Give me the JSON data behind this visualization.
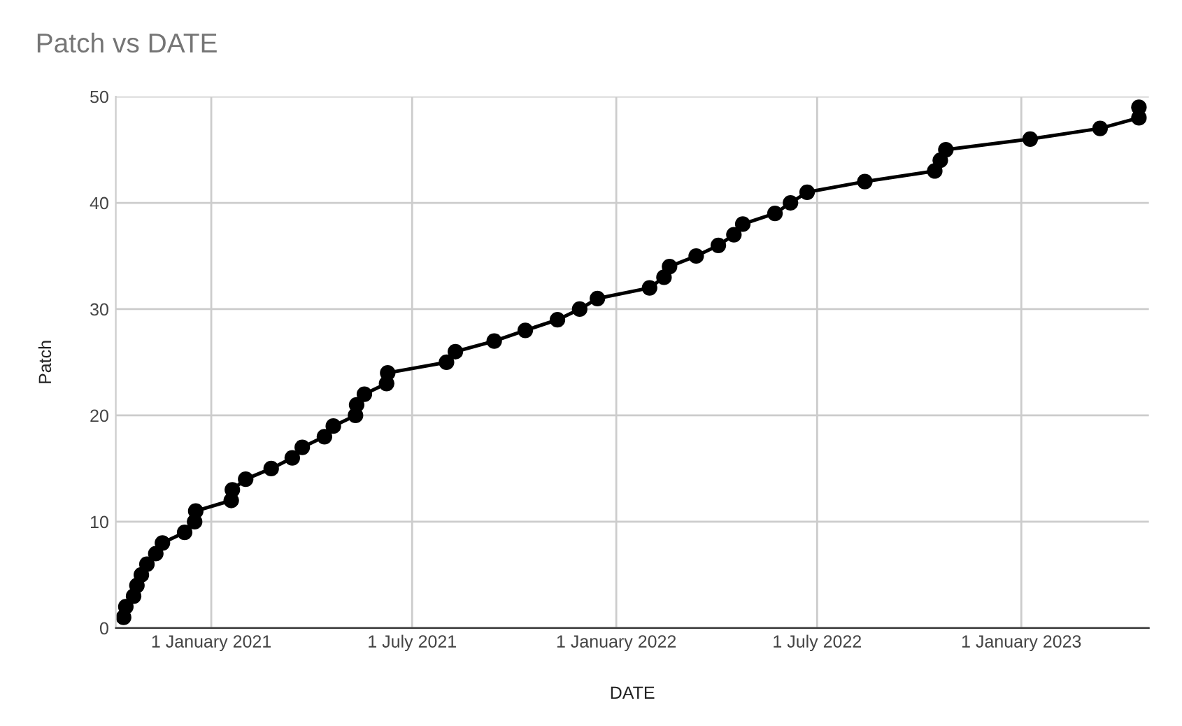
{
  "chart_data": {
    "type": "line",
    "title": "Patch vs DATE",
    "xlabel": "DATE",
    "ylabel": "Patch",
    "x": [
      "2020-10-14",
      "2020-10-16",
      "2020-10-23",
      "2020-10-26",
      "2020-10-30",
      "2020-11-04",
      "2020-11-12",
      "2020-11-18",
      "2020-12-08",
      "2020-12-17",
      "2020-12-18",
      "2021-01-19",
      "2021-01-20",
      "2021-02-01",
      "2021-02-24",
      "2021-03-15",
      "2021-03-24",
      "2021-04-13",
      "2021-04-21",
      "2021-05-11",
      "2021-05-12",
      "2021-05-19",
      "2021-06-08",
      "2021-06-09",
      "2021-08-01",
      "2021-08-09",
      "2021-09-13",
      "2021-10-11",
      "2021-11-09",
      "2021-11-29",
      "2021-12-15",
      "2022-01-31",
      "2022-02-13",
      "2022-02-18",
      "2022-03-14",
      "2022-04-03",
      "2022-04-17",
      "2022-04-25",
      "2022-05-24",
      "2022-06-07",
      "2022-06-22",
      "2022-08-13",
      "2022-10-15",
      "2022-10-20",
      "2022-10-25",
      "2023-01-09",
      "2023-03-13",
      "2023-04-17",
      "2023-04-17"
    ],
    "series": [
      {
        "color": "#000000",
        "values": [
          1,
          2,
          3,
          4,
          5,
          6,
          7,
          8,
          9,
          10,
          11,
          12,
          13,
          14,
          15,
          16,
          17,
          18,
          19,
          20,
          21,
          22,
          23,
          24,
          25,
          26,
          27,
          28,
          29,
          30,
          31,
          32,
          33,
          34,
          35,
          36,
          37,
          38,
          39,
          40,
          41,
          42,
          43,
          44,
          45,
          46,
          47,
          48,
          49
        ]
      }
    ],
    "xlim": [
      "2020-10-07",
      "2023-04-26"
    ],
    "xticks": [
      {
        "value": "2021-01-01",
        "label": "1 January 2021"
      },
      {
        "value": "2021-07-01",
        "label": "1 July 2021"
      },
      {
        "value": "2022-01-01",
        "label": "1 January 2022"
      },
      {
        "value": "2022-07-01",
        "label": "1 July 2022"
      },
      {
        "value": "2023-01-01",
        "label": "1 January 2023"
      }
    ],
    "ylim": [
      0,
      50
    ],
    "yticks": [
      0,
      10,
      20,
      30,
      40,
      50
    ],
    "grid": true,
    "marker": "circle",
    "line_style": "solid",
    "legend": false
  }
}
